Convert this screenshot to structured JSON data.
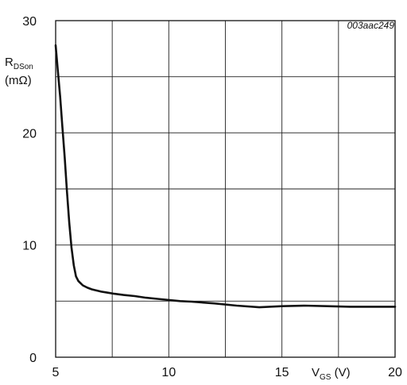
{
  "figure_code": "003aac249",
  "chart_data": {
    "type": "line",
    "xlim": [
      5,
      20
    ],
    "ylim": [
      0,
      30
    ],
    "xticks": [
      5,
      10,
      15,
      20
    ],
    "yticks": [
      0,
      10,
      20,
      30
    ],
    "x_gridlines": [
      5,
      7.5,
      10,
      12.5,
      15,
      17.5,
      20
    ],
    "y_gridlines": [
      0,
      5,
      10,
      15,
      20,
      25,
      30
    ],
    "grid": true,
    "xlabel": {
      "main": "V",
      "sub": "GS",
      "unit": " (V)"
    },
    "ylabel": {
      "main": "R",
      "sub": "DSon",
      "unit": "(mΩ)"
    },
    "series": [
      {
        "color": "#111111",
        "x": [
          5.0,
          5.1,
          5.2,
          5.3,
          5.4,
          5.5,
          5.6,
          5.7,
          5.8,
          5.9,
          6.0,
          6.1,
          6.2,
          6.4,
          6.6,
          6.8,
          7.0,
          7.3,
          7.6,
          8.0,
          8.5,
          9.0,
          9.5,
          10.0,
          10.5,
          11.0,
          12.0,
          13.0,
          14.0,
          15.0,
          16.0,
          17.0,
          18.0,
          19.0,
          20.0
        ],
        "y": [
          27.8,
          25.5,
          23.2,
          20.5,
          17.8,
          14.8,
          12.0,
          9.8,
          8.2,
          7.2,
          6.8,
          6.6,
          6.4,
          6.2,
          6.05,
          5.95,
          5.85,
          5.75,
          5.65,
          5.55,
          5.45,
          5.3,
          5.2,
          5.1,
          5.0,
          4.95,
          4.8,
          4.6,
          4.45,
          4.55,
          4.6,
          4.55,
          4.5,
          4.5,
          4.5
        ]
      }
    ]
  }
}
